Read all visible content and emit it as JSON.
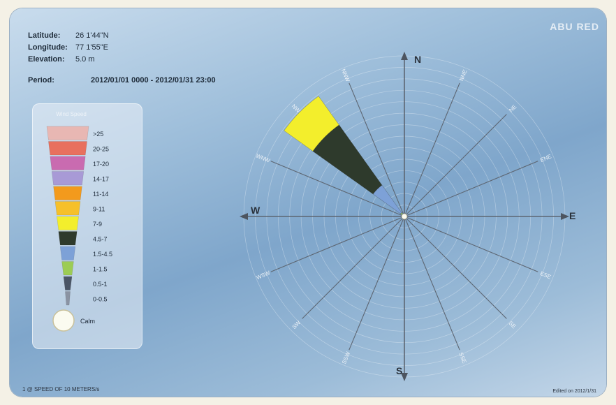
{
  "header": {
    "latitude_label": "Latitude:",
    "latitude_value": "26 1'44\"N",
    "longitude_label": "Longitude:",
    "longitude_value": "77 1'55\"E",
    "elevation_label": "Elevation:",
    "elevation_value": "5.0 m",
    "period_label": "Period:",
    "period_value": "2012/01/01 0000 - 2012/01/31 23:00"
  },
  "brand": "ABU RED",
  "legend": {
    "title": "Wind Speed",
    "calm_label": "Calm",
    "colors": {
      ">25": "#e8b7b3",
      "20-25": "#e8705e",
      "17-20": "#c96bb0",
      "14-17": "#a89ad6",
      "11-14": "#f39a1c",
      "9-11": "#f6c02a",
      "7-9": "#f3ee2c",
      "4.5-7": "#2e3a2c",
      "1.5-4.5": "#7da1d7",
      "1-1.5": "#9ccc55",
      "0.5-1": "#4a5566",
      "0-0.5": "#8a93a3",
      "calm": "#fbfbf0"
    }
  },
  "chart_data": {
    "type": "wind-rose",
    "title": "",
    "directions": [
      "N",
      "NNE",
      "NE",
      "ENE",
      "E",
      "ESE",
      "SE",
      "SSE",
      "S",
      "SSW",
      "SW",
      "WSW",
      "W",
      "WNW",
      "NW",
      "NNW"
    ],
    "compass_labels": {
      "N": "N",
      "E": "E",
      "S": "S",
      "W": "W"
    },
    "speed_bins": [
      ">25",
      "20-25",
      "17-20",
      "14-17",
      "11-14",
      "9-11",
      "7-9",
      "4.5-7",
      "1.5-4.5",
      "1-1.5",
      "0.5-1",
      "0-0.5"
    ],
    "max_frequency": 100,
    "rings": 14,
    "series": [
      {
        "name": "1-1.5",
        "values": [
          0,
          0,
          0,
          0,
          0,
          0,
          0,
          0,
          0,
          0,
          0,
          0,
          0,
          0,
          3,
          1
        ]
      },
      {
        "name": "1.5-4.5",
        "values": [
          0,
          0,
          0,
          0,
          0,
          0,
          0,
          0,
          0,
          0,
          0,
          0,
          0,
          0,
          21,
          0
        ]
      },
      {
        "name": "4.5-7",
        "values": [
          0,
          0,
          0,
          0,
          0,
          0,
          0,
          0,
          0,
          0,
          0,
          0,
          0,
          0,
          46,
          0
        ]
      },
      {
        "name": "7-9",
        "values": [
          0,
          0,
          0,
          0,
          0,
          0,
          0,
          0,
          0,
          0,
          0,
          0,
          0,
          0,
          22,
          0
        ]
      }
    ]
  },
  "footer": {
    "left": "1 @ SPEED OF 10 METERS/s",
    "right": "Edited on 2012/1/31"
  }
}
